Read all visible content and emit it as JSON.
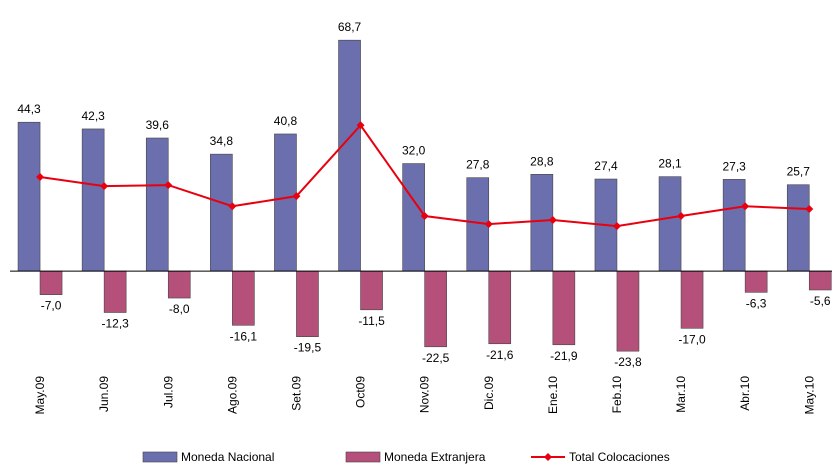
{
  "chart_data": {
    "type": "bar_line",
    "categories": [
      "May.09",
      "Jun.09",
      "Jul.09",
      "Ago.09",
      "Set.09",
      "Oct09",
      "Nov.09",
      "Dic.09",
      "Ene.10",
      "Feb.10",
      "Mar.10",
      "Abr.10",
      "May.10"
    ],
    "series": [
      {
        "name": "Moneda Nacional",
        "color": "#6b6fad",
        "kind": "bar",
        "values": [
          44.3,
          42.3,
          39.6,
          34.8,
          40.8,
          68.7,
          32.0,
          27.8,
          28.8,
          27.4,
          28.1,
          27.3,
          25.7
        ],
        "value_labels": [
          "44,3",
          "42,3",
          "39,6",
          "34,8",
          "40,8",
          "68,7",
          "32,0",
          "27,8",
          "28,8",
          "27,4",
          "28,1",
          "27,3",
          "25,7"
        ]
      },
      {
        "name": "Moneda Extranjera",
        "color": "#b5507a",
        "kind": "bar",
        "values": [
          -7.0,
          -12.3,
          -8.0,
          -16.1,
          -19.5,
          -11.5,
          -22.5,
          -21.6,
          -21.9,
          -23.8,
          -17.0,
          -6.3,
          -5.6
        ],
        "value_labels": [
          "-7,0",
          "-12,3",
          "-8,0",
          "-16,1",
          "-19,5",
          "-11,5",
          "-22,5",
          "-21,6",
          "-21,9",
          "-23,8",
          "-17,0",
          "-6,3",
          "-5,6"
        ]
      },
      {
        "name": "Total Colocaciones",
        "color": "#e8000f",
        "kind": "line",
        "values": [
          28.0,
          25.3,
          25.6,
          19.3,
          22.3,
          43.4,
          16.4,
          14.0,
          15.2,
          13.4,
          16.4,
          19.3,
          18.5
        ]
      }
    ],
    "ylim": [
      -30,
      75
    ]
  }
}
